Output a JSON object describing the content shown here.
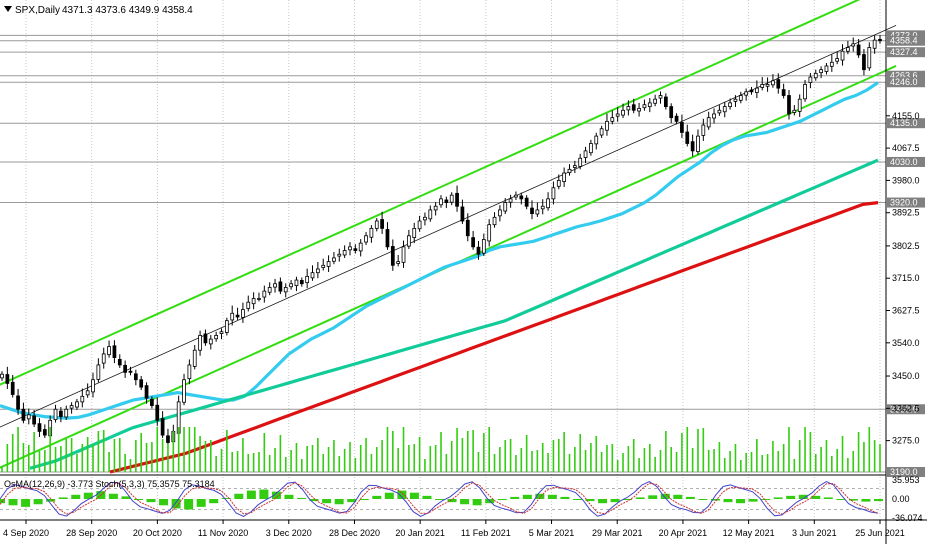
{
  "chart_data": {
    "type": "candlestick",
    "header": {
      "symbol": "SPX,Daily",
      "ohlc": "4371.3 4373.6 4349.9 4358.4"
    },
    "price_axis": {
      "ticks": [
        "4155.0",
        "4067.5",
        "3980.0",
        "3892.5",
        "3802.5",
        "3715.0",
        "3627.5",
        "3540.0",
        "3450.0",
        "3362.5",
        "3275.0"
      ],
      "ylim": [
        3190,
        4420
      ]
    },
    "levels": [
      {
        "label": "4373.0",
        "value": 4373.0
      },
      {
        "label": "4358.4",
        "value": 4358.4
      },
      {
        "label": "4327.4",
        "value": 4327.4
      },
      {
        "label": "4263.6",
        "value": 4263.6
      },
      {
        "label": "4246.0",
        "value": 4246.0
      },
      {
        "label": "4135.0",
        "value": 4135.0
      },
      {
        "label": "4030.0",
        "value": 4030.0
      },
      {
        "label": "3920.0",
        "value": 3920.0
      },
      {
        "label": "3360.0",
        "value": 3360.0
      },
      {
        "label": "3190.0",
        "value": 3190.0
      }
    ],
    "x_axis": {
      "ticks": [
        "4 Sep 2020",
        "28 Sep 2020",
        "20 Oct 2020",
        "11 Nov 2020",
        "3 Dec 2020",
        "28 Dec 2020",
        "20 Jan 2021",
        "11 Feb 2021",
        "5 Mar 2021",
        "29 Mar 2021",
        "20 Apr 2021",
        "12 May 2021",
        "3 Jun 2021",
        "25 Jun 2021"
      ]
    },
    "series": [
      {
        "name": "close",
        "values": [
          3455,
          3430,
          3400,
          3360,
          3330,
          3345,
          3320,
          3300,
          3290,
          3330,
          3360,
          3340,
          3360,
          3370,
          3380,
          3395,
          3410,
          3440,
          3480,
          3510,
          3530,
          3500,
          3480,
          3460,
          3460,
          3440,
          3420,
          3390,
          3370,
          3330,
          3290,
          3270,
          3300,
          3380,
          3440,
          3480,
          3520,
          3560,
          3540,
          3550,
          3560,
          3570,
          3600,
          3620,
          3610,
          3630,
          3650,
          3660,
          3660,
          3680,
          3690,
          3700,
          3680,
          3690,
          3700,
          3710,
          3700,
          3720,
          3730,
          3740,
          3750,
          3760,
          3770,
          3780,
          3790,
          3800,
          3790,
          3810,
          3830,
          3850,
          3870,
          3850,
          3800,
          3750,
          3760,
          3800,
          3830,
          3850,
          3870,
          3880,
          3900,
          3910,
          3930,
          3920,
          3940,
          3910,
          3870,
          3830,
          3800,
          3780,
          3820,
          3860,
          3880,
          3900,
          3920,
          3930,
          3940,
          3930,
          3910,
          3890,
          3900,
          3910,
          3930,
          3960,
          3980,
          4000,
          4010,
          4020,
          4040,
          4060,
          4080,
          4100,
          4120,
          4140,
          4150,
          4160,
          4170,
          4180,
          4170,
          4175,
          4185,
          4190,
          4200,
          4210,
          4180,
          4150,
          4140,
          4110,
          4080,
          4060,
          4100,
          4130,
          4150,
          4160,
          4170,
          4180,
          4190,
          4200,
          4210,
          4220,
          4220,
          4230,
          4240,
          4240,
          4250,
          4230,
          4210,
          4160,
          4170,
          4200,
          4240,
          4260,
          4270,
          4280,
          4290,
          4300,
          4310,
          4330,
          4340,
          4350,
          4320,
          4280,
          4340,
          4360,
          4358.4
        ]
      },
      {
        "name": "MA",
        "color": "#33ccee",
        "values": [
          3370,
          3360,
          3350,
          3345,
          3340,
          3338,
          3336,
          3338,
          3345,
          3355,
          3365,
          3375,
          3385,
          3390,
          3395,
          3400,
          3405,
          3400,
          3395,
          3390,
          3385,
          3385,
          3395,
          3420,
          3450,
          3480,
          3510,
          3530,
          3550,
          3565,
          3580,
          3600,
          3620,
          3640,
          3655,
          3670,
          3685,
          3700,
          3715,
          3730,
          3745,
          3755,
          3765,
          3775,
          3790,
          3800,
          3805,
          3810,
          3815,
          3825,
          3835,
          3845,
          3855,
          3862,
          3870,
          3880,
          3890,
          3905,
          3920,
          3940,
          3965,
          3990,
          4010,
          4030,
          4055,
          4075,
          4090,
          4100,
          4105,
          4110,
          4120,
          4130,
          4140,
          4155,
          4170,
          4185,
          4200,
          4210,
          4225,
          4245
        ]
      },
      {
        "name": "MA",
        "color": "#11cc99",
        "values": [
          3200,
          3210,
          3220,
          3235,
          3250,
          3265,
          3280,
          3295,
          3310,
          3320,
          3330,
          3340,
          3350,
          3360,
          3370,
          3380,
          3390,
          3400,
          3410,
          3420,
          3430,
          3440,
          3450,
          3460,
          3470,
          3480,
          3490,
          3500,
          3510,
          3520,
          3530,
          3540,
          3550,
          3560,
          3570,
          3580,
          3590,
          3600,
          3615,
          3630,
          3645,
          3660,
          3675,
          3690,
          3705,
          3720,
          3735,
          3750,
          3765,
          3780,
          3795,
          3810,
          3825,
          3840,
          3855,
          3870,
          3885,
          3900,
          3915,
          3930,
          3945,
          3960,
          3975,
          3990,
          4005,
          4020,
          4035
        ]
      },
      {
        "name": "MA",
        "color": "#dd1111",
        "values": [
          3190,
          3200,
          3210,
          3220,
          3230,
          3240,
          3255,
          3270,
          3285,
          3300,
          3315,
          3330,
          3345,
          3360,
          3375,
          3390,
          3405,
          3420,
          3435,
          3450,
          3465,
          3480,
          3495,
          3510,
          3525,
          3540,
          3555,
          3570,
          3585,
          3600,
          3615,
          3630,
          3645,
          3660,
          3675,
          3690,
          3705,
          3720,
          3735,
          3750,
          3765,
          3780,
          3795,
          3810,
          3825,
          3840,
          3855,
          3870,
          3885,
          3900,
          3915,
          3920
        ]
      }
    ],
    "indicator": {
      "label": "OsMA(12,26,9) -3.773  Stoch(5,3,3) 75.3575 75.3184",
      "ticks": [
        "35.953",
        "0.00",
        "-36.074"
      ],
      "osma": [
        -8,
        -12,
        -15,
        -10,
        -5,
        3,
        8,
        12,
        15,
        10,
        5,
        0,
        -6,
        -12,
        -18,
        -20,
        -15,
        -8,
        2,
        10,
        16,
        18,
        14,
        8,
        2,
        -4,
        -8,
        -10,
        -6,
        0,
        6,
        12,
        16,
        12,
        6,
        0,
        -6,
        -10,
        -12,
        -8,
        -2,
        4,
        8,
        10,
        8,
        4,
        0,
        -4,
        -8,
        -6,
        -2,
        3,
        7,
        10,
        8,
        4,
        0,
        -3,
        -6,
        -8,
        -5,
        -1,
        3,
        6,
        8,
        6,
        3,
        0,
        -3,
        -5,
        -4
      ]
    },
    "colors": {
      "candle_up": "#000000",
      "candle_down": "#000000",
      "channel": "#33dd11",
      "volume": "#33cc11",
      "level_tag": "#808080",
      "stoch_main": "#4444cc",
      "stoch_signal": "#cc3333"
    },
    "grid": false
  }
}
